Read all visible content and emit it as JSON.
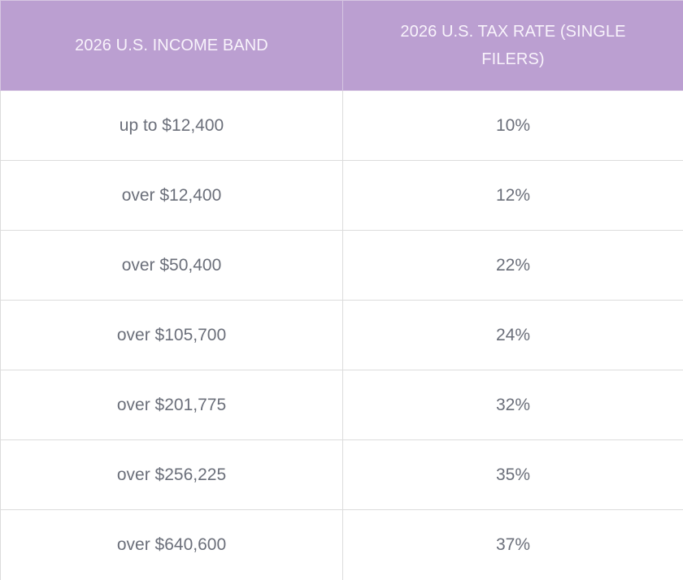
{
  "table": {
    "headers": [
      "2026 U.S. INCOME BAND",
      "2026 U.S. TAX RATE (SINGLE FILERS)"
    ],
    "rows": [
      [
        "up to $12,400",
        "10%"
      ],
      [
        "over $12,400",
        "12%"
      ],
      [
        "over $50,400",
        "22%"
      ],
      [
        "over $105,700",
        "24%"
      ],
      [
        "over $201,775",
        "32%"
      ],
      [
        "over $256,225",
        "35%"
      ],
      [
        "over $640,600",
        "37%"
      ]
    ]
  },
  "colors": {
    "header_background": "#bb9fd1",
    "header_text": "#f8f3fb",
    "cell_text": "#6b6f7a",
    "grid_line": "#dcdcdc"
  }
}
